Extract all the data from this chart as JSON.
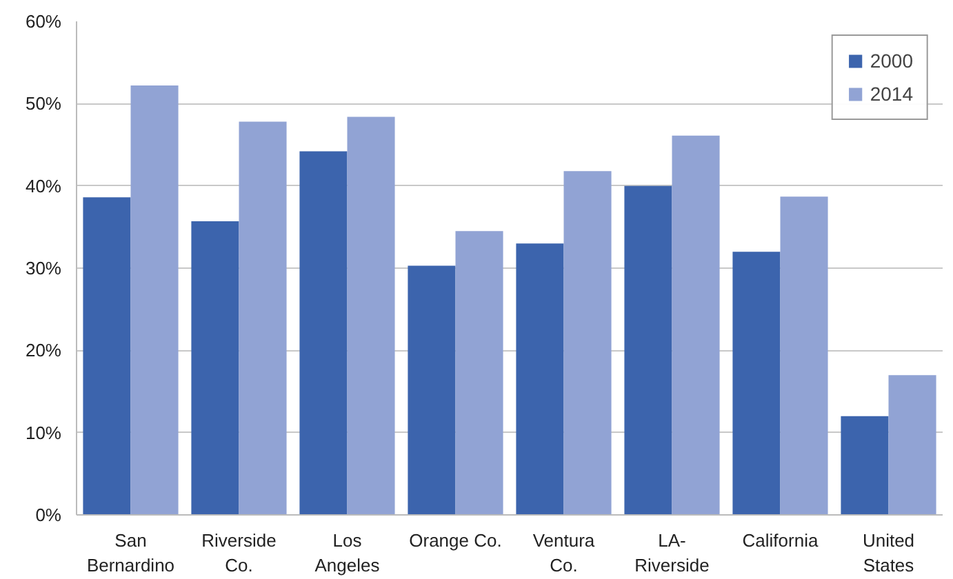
{
  "chart_data": {
    "type": "bar",
    "categories": [
      "San\nBernardino",
      "Riverside\nCo.",
      "Los\nAngeles",
      "Orange Co.",
      "Ventura\nCo.",
      "LA-\nRiverside",
      "California",
      "United\nStates"
    ],
    "series": [
      {
        "name": "2000",
        "color": "#3c64ad",
        "values": [
          38.6,
          35.7,
          44.2,
          30.3,
          33.0,
          40.0,
          32.0,
          12.0
        ]
      },
      {
        "name": "2014",
        "color": "#91a3d4",
        "values": [
          52.2,
          47.8,
          48.4,
          34.5,
          41.8,
          46.1,
          38.7,
          17.0
        ]
      }
    ],
    "ylim": [
      0,
      60
    ],
    "yticks": [
      {
        "value": 0,
        "label": "0%"
      },
      {
        "value": 10,
        "label": "10%"
      },
      {
        "value": 20,
        "label": "20%"
      },
      {
        "value": 30,
        "label": "30%"
      },
      {
        "value": 40,
        "label": "40%"
      },
      {
        "value": 50,
        "label": "50%"
      },
      {
        "value": 60,
        "label": "60%"
      }
    ],
    "grid": "y",
    "legend": "top right"
  }
}
